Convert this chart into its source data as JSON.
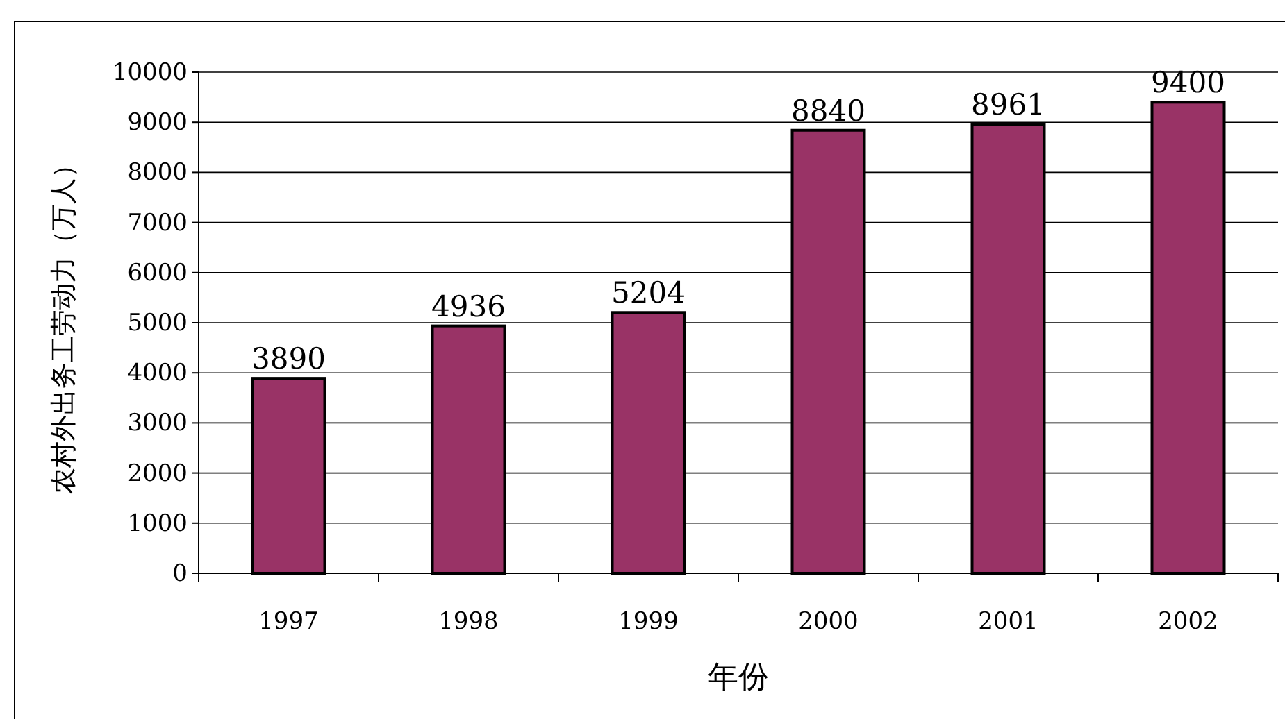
{
  "chart_data": {
    "type": "bar",
    "xlabel": "年份",
    "ylabel": "农村外出务工劳动力（万人）",
    "categories": [
      "1997",
      "1998",
      "1999",
      "2000",
      "2001",
      "2002"
    ],
    "values": [
      3890,
      4936,
      5204,
      8840,
      8961,
      9400
    ],
    "color": "#993366",
    "ylim": [
      0,
      10000
    ],
    "yticks": [
      0,
      1000,
      2000,
      3000,
      4000,
      5000,
      6000,
      7000,
      8000,
      9000,
      10000
    ],
    "grid": "y",
    "data_labels": true
  }
}
